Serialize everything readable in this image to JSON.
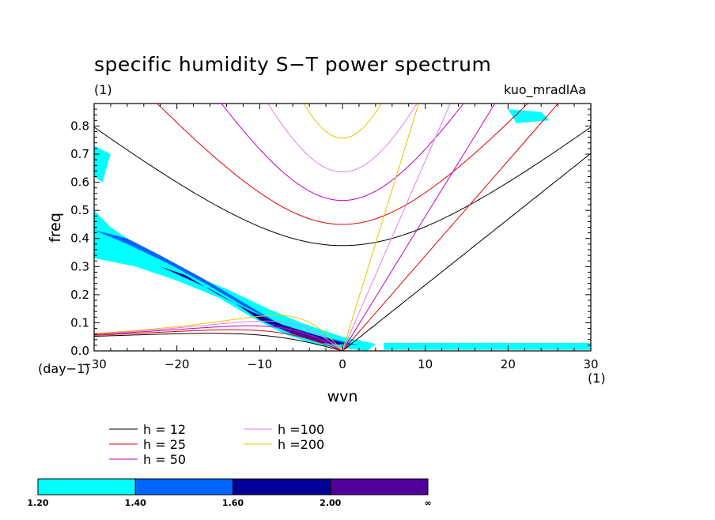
{
  "chart_data": {
    "type": "heatmap",
    "title": "specific humidity S−T power spectrum",
    "subtitle_left": "(1)",
    "subtitle_right": "kuo_mradlAa",
    "xlabel": "wvn",
    "ylabel": "freq",
    "x_unit": "(1)",
    "y_unit": "(day−1)",
    "xlim": [
      -30,
      30
    ],
    "ylim": [
      0,
      0.88
    ],
    "x_ticks": [
      -30,
      -20,
      -10,
      0,
      10,
      20,
      30
    ],
    "y_ticks": [
      0.0,
      0.1,
      0.2,
      0.3,
      0.4,
      0.5,
      0.6,
      0.7,
      0.8
    ],
    "x_tick_labels": [
      "−30",
      "−20",
      "−10",
      "0",
      "10",
      "20",
      "30"
    ],
    "y_tick_labels": [
      "0.0",
      "0.1",
      "0.2",
      "0.3",
      "0.4",
      "0.5",
      "0.6",
      "0.7",
      "0.8"
    ],
    "grid": false,
    "dispersion_curves": [
      {
        "label": "h = 12",
        "h": 12,
        "color": "#000000"
      },
      {
        "label": "h = 25",
        "h": 25,
        "color": "#e00000"
      },
      {
        "label": "h = 50",
        "h": 50,
        "color": "#c000c0"
      },
      {
        "label": "h =100",
        "h": 100,
        "color": "#e080e0"
      },
      {
        "label": "h =200",
        "h": 200,
        "color": "#f0c000"
      }
    ],
    "contour_levels": [
      "1.20",
      "1.40",
      "1.60",
      "2.00",
      "∞"
    ],
    "contour_colors": [
      "#00ffff",
      "#0064ff",
      "#000096",
      "#50009b"
    ],
    "shaded_regions": [
      {
        "level": 1,
        "points": [
          [
            -30,
            0.5
          ],
          [
            -30,
            0.33
          ],
          [
            -25,
            0.3
          ],
          [
            -20,
            0.25
          ],
          [
            -15,
            0.19
          ],
          [
            -11,
            0.12
          ],
          [
            -7,
            0.06
          ],
          [
            -3,
            0.02
          ],
          [
            3,
            0.0
          ],
          [
            4,
            0.025
          ],
          [
            0,
            0.05
          ],
          [
            -5,
            0.1
          ],
          [
            -9,
            0.15
          ],
          [
            -14,
            0.22
          ],
          [
            -19,
            0.28
          ],
          [
            -24,
            0.36
          ],
          [
            -28,
            0.44
          ]
        ]
      },
      {
        "level": 1,
        "points": [
          [
            -30,
            0.73
          ],
          [
            -28,
            0.7
          ],
          [
            -29,
            0.6
          ],
          [
            -30,
            0.62
          ]
        ]
      },
      {
        "level": 1,
        "points": [
          [
            5,
            0.028
          ],
          [
            30,
            0.028
          ],
          [
            30,
            0.004
          ],
          [
            5,
            0.004
          ]
        ]
      },
      {
        "level": 1,
        "points": [
          [
            20,
            0.86
          ],
          [
            24,
            0.85
          ],
          [
            25,
            0.82
          ],
          [
            21,
            0.81
          ]
        ]
      },
      {
        "level": 2,
        "points": [
          [
            -30,
            0.43
          ],
          [
            -26,
            0.4
          ],
          [
            -22,
            0.34
          ],
          [
            -17,
            0.26
          ],
          [
            -13,
            0.19
          ],
          [
            -9,
            0.12
          ],
          [
            -6,
            0.07
          ],
          [
            -2,
            0.03
          ],
          [
            2,
            0.02
          ],
          [
            -3,
            0.055
          ],
          [
            -8,
            0.1
          ],
          [
            -12,
            0.16
          ],
          [
            -16,
            0.23
          ],
          [
            -21,
            0.31
          ],
          [
            -26,
            0.38
          ]
        ]
      },
      {
        "level": 3,
        "points": [
          [
            -22,
            0.3
          ],
          [
            -19,
            0.26
          ],
          [
            -16,
            0.22
          ],
          [
            -13,
            0.17
          ],
          [
            -10,
            0.11
          ],
          [
            -6,
            0.06
          ],
          [
            -2,
            0.03
          ],
          [
            1,
            0.02
          ],
          [
            -2,
            0.045
          ],
          [
            -7,
            0.09
          ],
          [
            -11,
            0.14
          ],
          [
            -15,
            0.2
          ],
          [
            -19,
            0.27
          ]
        ]
      },
      {
        "level": 4,
        "points": [
          [
            -9,
            0.1
          ],
          [
            -6,
            0.06
          ],
          [
            -3,
            0.03
          ],
          [
            0,
            0.02
          ],
          [
            -3,
            0.05
          ],
          [
            -6,
            0.08
          ]
        ]
      }
    ]
  }
}
